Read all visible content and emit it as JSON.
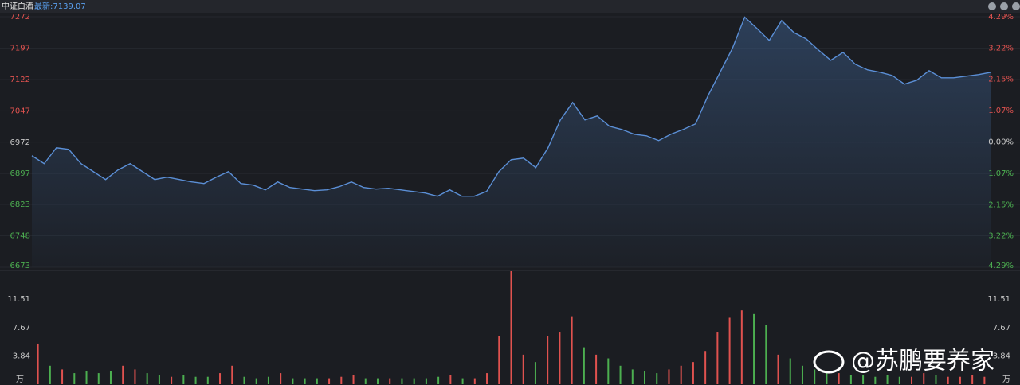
{
  "chart_data": [
    {
      "type": "line",
      "title": "中证白酒",
      "subtitle": "最新:7139.07",
      "color": "#5b8fd6",
      "up_color": "#e0524f",
      "down_color": "#4caf50",
      "neutral_color": "#c8c8c8",
      "grid": true,
      "values": [
        6939.7,
        6920.7,
        6958.7,
        6954.9,
        6920.7,
        6901.7,
        6882.7,
        6905.5,
        6920.7,
        6901.7,
        6882.7,
        6888.4,
        6882.7,
        6877,
        6873.2,
        6888.4,
        6901.7,
        6873.2,
        6869.4,
        6858,
        6877,
        6863.7,
        6859.9,
        6856.1,
        6858,
        6865.6,
        6877,
        6863.7,
        6859.9,
        6861.8,
        6858,
        6854.2,
        6850.4,
        6842.8,
        6858,
        6842.8,
        6842.8,
        6854.2,
        6901.7,
        6930.2,
        6934,
        6911.2,
        6958.7,
        7025.2,
        7067,
        7025.2,
        7034.7,
        7010,
        7002.4,
        6991,
        6987.2,
        6975.8,
        6991,
        7002.4,
        7015.7,
        7082.2,
        7139.2,
        7196.2,
        7271,
        7243.7,
        7215.2,
        7262.7,
        7234.2,
        7219,
        7192.4,
        7167.7,
        7186.7,
        7158.2,
        7144.9,
        7139.2,
        7131.6,
        7110.7,
        7120.2,
        7143,
        7125.9,
        7125.9,
        7129.7,
        7133.5,
        7139.07
      ],
      "ylim": [
        6673,
        7272
      ],
      "yticks": [
        7272,
        7197,
        7122,
        7047,
        6972,
        6897,
        6823,
        6748,
        6673
      ],
      "y2lim": [
        -4.29,
        4.29
      ],
      "y2ticks": [
        {
          "value": 4.29,
          "label": "4.29%"
        },
        {
          "value": 3.22,
          "label": "3.22%"
        },
        {
          "value": 2.15,
          "label": "2.15%"
        },
        {
          "value": 1.07,
          "label": "1.07%"
        },
        {
          "value": 0,
          "label": "0.00%"
        },
        {
          "value": -1.07,
          "label": "1.07%"
        },
        {
          "value": -2.15,
          "label": "2.15%"
        },
        {
          "value": -3.22,
          "label": "3.22%"
        },
        {
          "value": -4.29,
          "label": "4.29%"
        }
      ]
    },
    {
      "type": "bar",
      "values": [
        5.5,
        2.5,
        2.0,
        1.5,
        1.8,
        1.5,
        1.8,
        2.5,
        2.0,
        1.5,
        1.2,
        1.0,
        1.2,
        1.0,
        1.0,
        1.5,
        2.5,
        1.0,
        0.8,
        1.0,
        1.5,
        0.8,
        0.8,
        0.8,
        0.8,
        1.0,
        1.2,
        0.8,
        0.8,
        0.8,
        0.8,
        0.8,
        0.8,
        1.0,
        1.2,
        0.8,
        0.8,
        1.5,
        6.5,
        15.3,
        4.0,
        3.0,
        6.5,
        7.0,
        9.2,
        5.0,
        4.0,
        3.5,
        2.5,
        2.0,
        1.8,
        1.5,
        2.0,
        2.5,
        3.0,
        4.5,
        7.0,
        9.0,
        10.0,
        9.5,
        8.0,
        4.0,
        3.5,
        2.5,
        2.0,
        1.5,
        1.5,
        1.2,
        1.2,
        1.0,
        1.2,
        1.0,
        1.0,
        1.5,
        1.2,
        1.0,
        1.0,
        1.2,
        1.0
      ],
      "ylim": [
        0,
        15.3
      ],
      "yticks": [
        {
          "value": 0,
          "label": "万"
        },
        3.84,
        7.67,
        11.51
      ]
    }
  ],
  "watermark": "@苏鹏要养家"
}
